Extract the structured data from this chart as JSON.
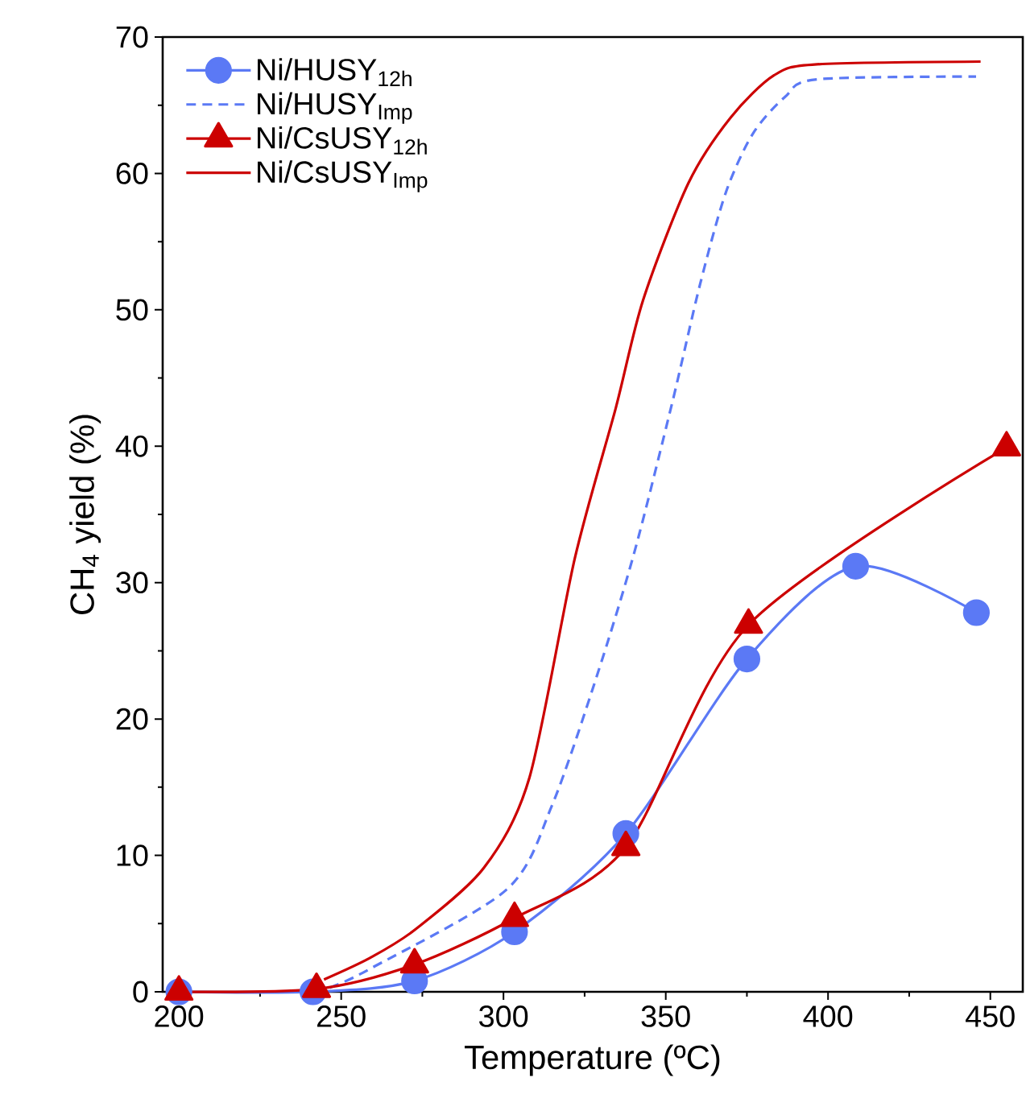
{
  "chart_data": {
    "type": "line",
    "xlabel": "Temperature (ºC)",
    "ylabel": "CH$_{4}$ yield (%)",
    "xlim": [
      195,
      460
    ],
    "ylim": [
      0,
      70
    ],
    "xticks": [
      200,
      250,
      300,
      350,
      400,
      450
    ],
    "yticks": [
      0,
      10,
      20,
      30,
      40,
      50,
      60,
      70
    ],
    "legend": "top left",
    "grid": false,
    "series": [
      {
        "name": "Ni/HUSY$_{12h}$",
        "color": "#5b79f5",
        "marker": "circle",
        "line_style": "solid",
        "x": [
          200,
          241.3,
          272.6,
          303.4,
          337.7,
          375,
          408.5,
          445.7
        ],
        "values": [
          0,
          0,
          0.8,
          4.4,
          11.6,
          24.4,
          31.2,
          27.8
        ]
      },
      {
        "name": "Ni/HUSY$_{Imp}$",
        "color": "#5b79f5",
        "marker": "none",
        "line_style": "dashed",
        "x": [
          246.5,
          259,
          301,
          315,
          328.7,
          340.3,
          352,
          360.6,
          368.5,
          376.8,
          386.7,
          396.6,
          445.6
        ],
        "values": [
          0.3,
          1.7,
          7.5,
          13.7,
          23.1,
          32.2,
          43.2,
          51.9,
          58.6,
          62.9,
          65.6,
          66.9,
          67.1
        ]
      },
      {
        "name": "Ni/CsUSY$_{12h}$",
        "color": "#cc0000",
        "marker": "triangle",
        "line_style": "solid",
        "x": [
          200,
          242.4,
          272.6,
          303.4,
          337.7,
          375.5,
          455
        ],
        "values": [
          0,
          0.2,
          2.0,
          5.4,
          10.6,
          26.9,
          39.9
        ]
      },
      {
        "name": "Ni/CsUSY$_{Imp}$",
        "color": "#cc0000",
        "marker": "none",
        "line_style": "solid",
        "x": [
          244.7,
          259,
          273,
          294,
          308,
          322,
          334.6,
          343,
          357,
          370,
          383.4,
          396.6,
          447
        ],
        "values": [
          0.9,
          2.5,
          4.6,
          9.1,
          15.7,
          31.8,
          42.8,
          50.7,
          59.3,
          64.1,
          67.2,
          68.0,
          68.2
        ]
      }
    ]
  }
}
